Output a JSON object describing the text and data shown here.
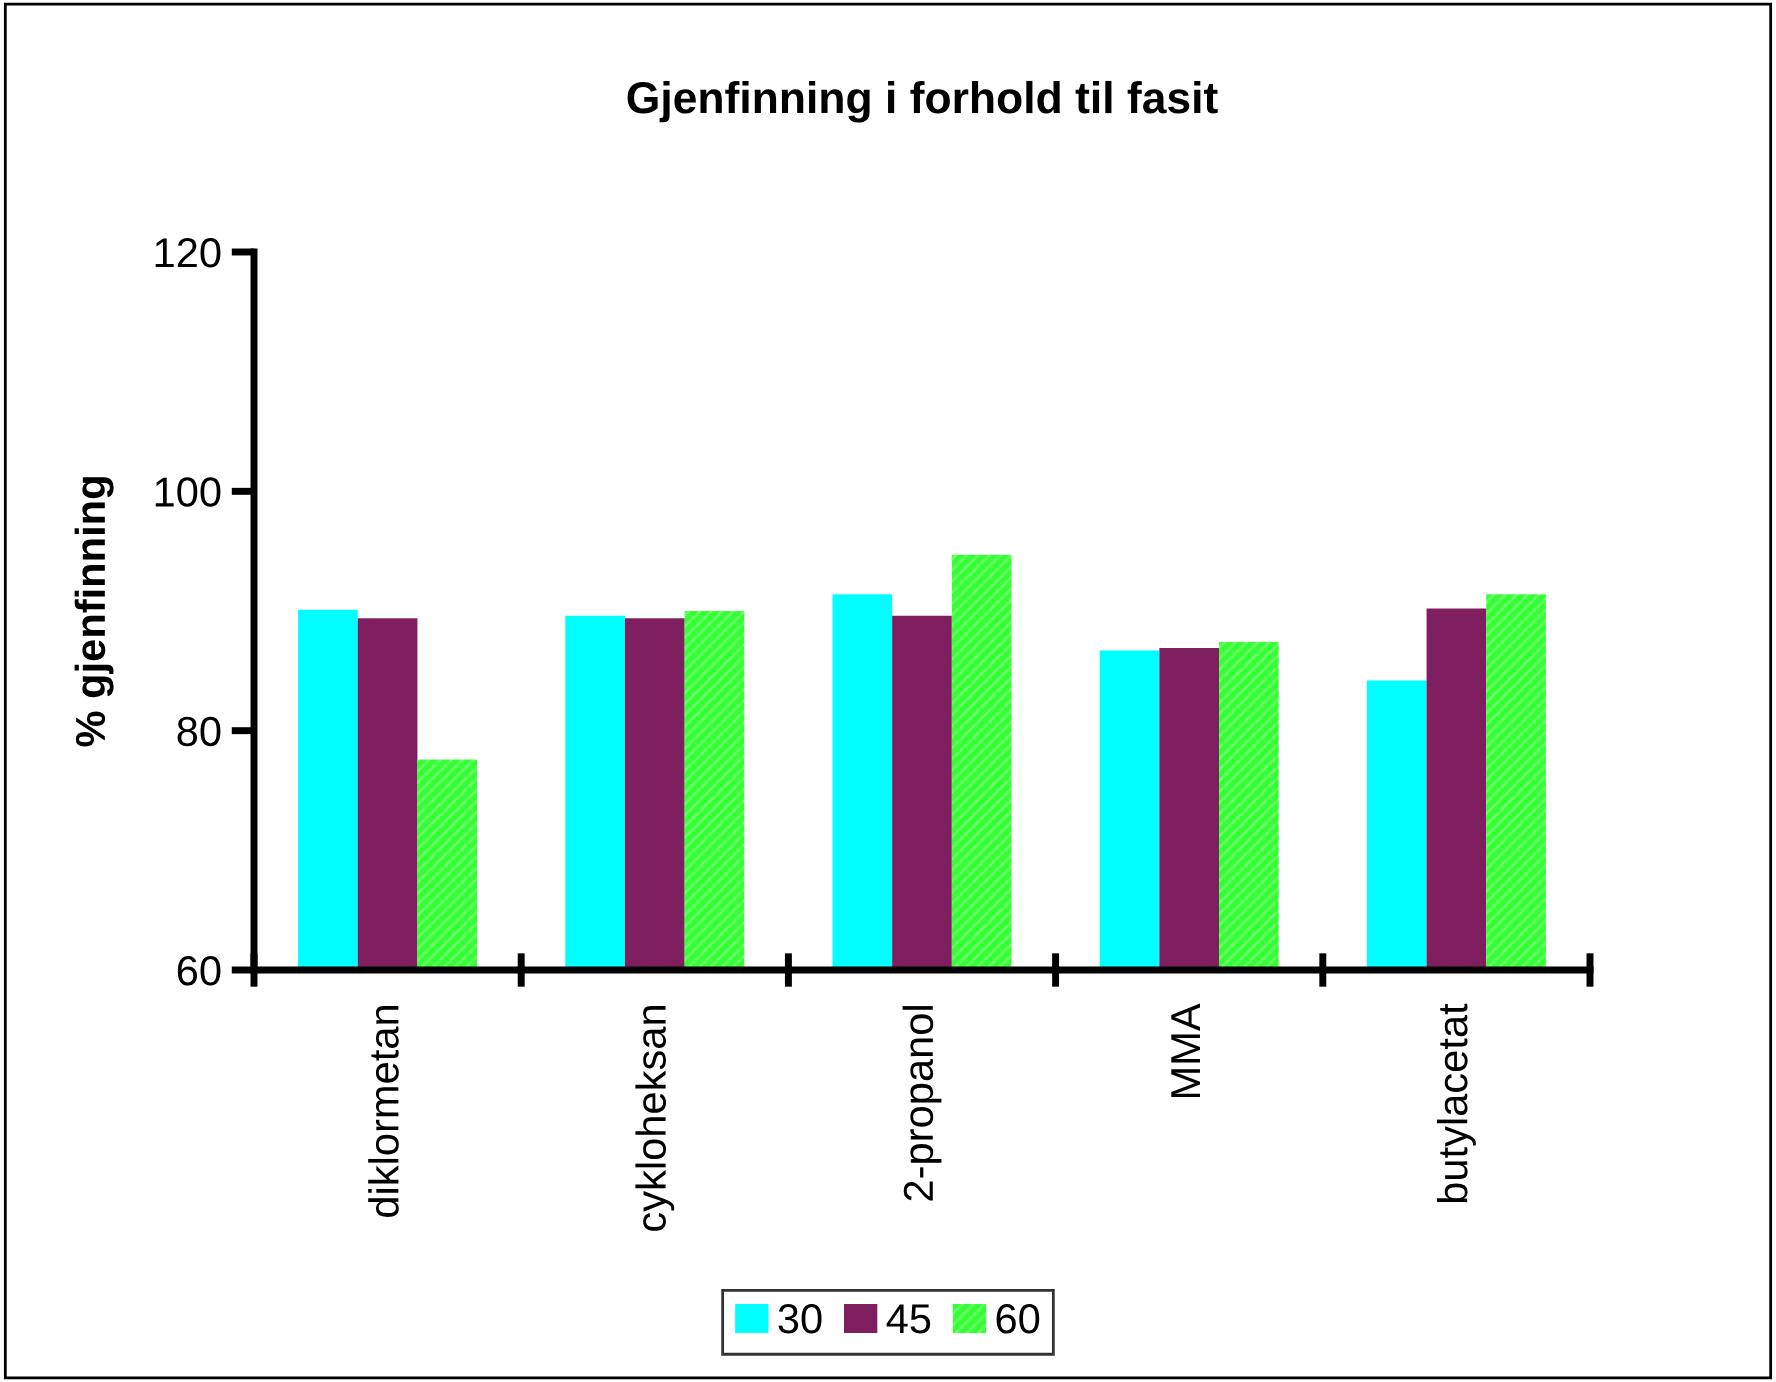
{
  "chart_data": {
    "type": "bar",
    "title": "Gjenfinning i forhold til fasit",
    "ylabel": "% gjenfinning",
    "categories": [
      "diklormetan",
      "cykloheksan",
      "2-propanol",
      "MMA",
      "butylacetat"
    ],
    "series": [
      {
        "name": "30",
        "color": "#00ffff",
        "values": [
          90.1,
          89.6,
          91.4,
          86.7,
          84.2
        ]
      },
      {
        "name": "45",
        "color": "#7f1f5f",
        "values": [
          89.4,
          89.4,
          89.6,
          86.9,
          90.2
        ]
      },
      {
        "name": "60",
        "color": "#33ff33",
        "values": [
          77.6,
          90.0,
          94.7,
          87.4,
          91.4
        ]
      }
    ],
    "ylim": [
      60,
      120
    ],
    "yticks": [
      60,
      80,
      100,
      120
    ],
    "grid": false,
    "legend": "bottom"
  }
}
